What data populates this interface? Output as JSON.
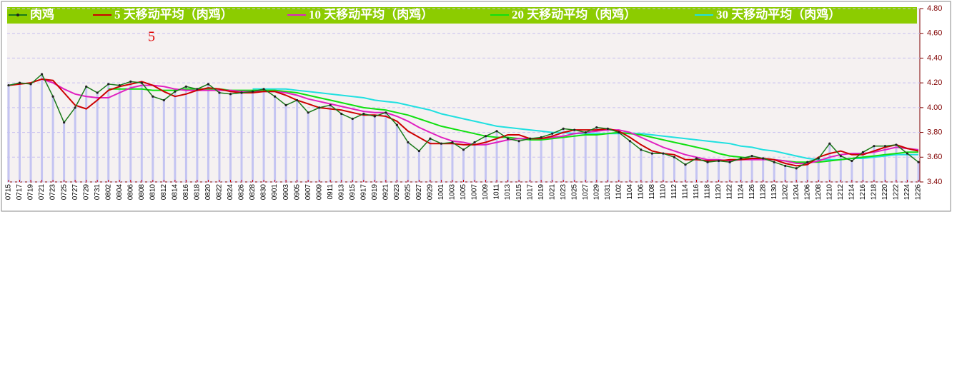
{
  "chart_data": {
    "type": "line",
    "annotation": "5",
    "categories": [
      "0715",
      "0717",
      "0719",
      "0721",
      "0723",
      "0725",
      "0727",
      "0729",
      "0731",
      "0802",
      "0804",
      "0806",
      "0808",
      "0810",
      "0812",
      "0814",
      "0816",
      "0818",
      "0820",
      "0822",
      "0824",
      "0826",
      "0828",
      "0830",
      "0901",
      "0903",
      "0905",
      "0907",
      "0909",
      "0911",
      "0913",
      "0915",
      "0917",
      "0919",
      "0921",
      "0923",
      "0925",
      "0927",
      "0929",
      "1001",
      "1003",
      "1005",
      "1007",
      "1009",
      "1011",
      "1013",
      "1015",
      "1017",
      "1019",
      "1021",
      "1023",
      "1025",
      "1027",
      "1029",
      "1031",
      "1102",
      "1104",
      "1106",
      "1108",
      "1110",
      "1112",
      "1114",
      "1116",
      "1118",
      "1120",
      "1122",
      "1124",
      "1126",
      "1128",
      "1130",
      "1202",
      "1204",
      "1206",
      "1208",
      "1210",
      "1212",
      "1214",
      "1216",
      "1218",
      "1220",
      "1222",
      "1224",
      "1226"
    ],
    "series": [
      {
        "name": "肉鸡",
        "color": "#1a7a1a",
        "values": [
          4.18,
          4.2,
          4.19,
          4.27,
          4.09,
          3.88,
          4.0,
          4.17,
          4.12,
          4.19,
          4.18,
          4.21,
          4.2,
          4.09,
          4.06,
          4.13,
          4.17,
          4.15,
          4.19,
          4.12,
          4.11,
          4.12,
          4.13,
          4.15,
          4.09,
          4.02,
          4.06,
          3.96,
          4.0,
          4.02,
          3.95,
          3.91,
          3.95,
          3.93,
          3.96,
          3.86,
          3.72,
          3.65,
          3.75,
          3.71,
          3.72,
          3.66,
          3.72,
          3.77,
          3.81,
          3.75,
          3.73,
          3.75,
          3.76,
          3.79,
          3.83,
          3.82,
          3.8,
          3.84,
          3.83,
          3.8,
          3.73,
          3.66,
          3.63,
          3.63,
          3.6,
          3.54,
          3.59,
          3.56,
          3.57,
          3.56,
          3.59,
          3.61,
          3.59,
          3.56,
          3.53,
          3.51,
          3.56,
          3.59,
          3.71,
          3.61,
          3.57,
          3.64,
          3.69,
          3.69,
          3.7,
          3.63,
          3.56
        ]
      },
      {
        "name": "5 天移动平均（肉鸡）",
        "color": "#cc0000",
        "values": [
          4.18,
          4.19,
          4.2,
          4.23,
          4.22,
          4.12,
          4.02,
          3.99,
          4.06,
          4.14,
          4.17,
          4.19,
          4.21,
          4.18,
          4.13,
          4.09,
          4.11,
          4.14,
          4.16,
          4.15,
          4.13,
          4.12,
          4.12,
          4.13,
          4.13,
          4.1,
          4.06,
          4.03,
          4.0,
          3.99,
          3.98,
          3.96,
          3.94,
          3.94,
          3.93,
          3.89,
          3.81,
          3.76,
          3.71,
          3.71,
          3.71,
          3.7,
          3.7,
          3.72,
          3.75,
          3.78,
          3.78,
          3.75,
          3.75,
          3.77,
          3.8,
          3.82,
          3.82,
          3.82,
          3.83,
          3.81,
          3.76,
          3.7,
          3.65,
          3.63,
          3.62,
          3.58,
          3.58,
          3.57,
          3.57,
          3.58,
          3.58,
          3.59,
          3.59,
          3.58,
          3.55,
          3.53,
          3.54,
          3.6,
          3.63,
          3.65,
          3.62,
          3.62,
          3.65,
          3.68,
          3.7,
          3.67,
          3.65
        ]
      },
      {
        "name": "10 天移动平均（肉鸡）",
        "color": "#e020c0",
        "values": [
          null,
          null,
          null,
          4.23,
          4.2,
          4.15,
          4.11,
          4.09,
          4.08,
          4.08,
          4.12,
          4.16,
          4.18,
          4.18,
          4.17,
          4.15,
          4.14,
          4.14,
          4.14,
          4.14,
          4.14,
          4.13,
          4.13,
          4.13,
          4.13,
          4.12,
          4.1,
          4.07,
          4.05,
          4.03,
          4.01,
          3.99,
          3.97,
          3.96,
          3.96,
          3.93,
          3.89,
          3.84,
          3.8,
          3.76,
          3.73,
          3.72,
          3.7,
          3.7,
          3.72,
          3.74,
          3.75,
          3.75,
          3.75,
          3.76,
          3.77,
          3.79,
          3.8,
          3.81,
          3.82,
          3.82,
          3.8,
          3.76,
          3.72,
          3.68,
          3.65,
          3.62,
          3.6,
          3.58,
          3.58,
          3.57,
          3.58,
          3.58,
          3.58,
          3.58,
          3.57,
          3.55,
          3.55,
          3.57,
          3.6,
          3.62,
          3.63,
          3.63,
          3.64,
          3.66,
          3.68,
          3.67,
          3.66
        ]
      },
      {
        "name": "20 天移动平均（肉鸡）",
        "color": "#10e010",
        "values": [
          null,
          null,
          null,
          null,
          null,
          null,
          null,
          null,
          null,
          4.15,
          4.15,
          4.15,
          4.15,
          4.14,
          4.14,
          4.14,
          4.15,
          4.15,
          4.15,
          4.15,
          4.14,
          4.14,
          4.14,
          4.14,
          4.14,
          4.13,
          4.12,
          4.1,
          4.08,
          4.06,
          4.04,
          4.02,
          4.0,
          3.99,
          3.98,
          3.96,
          3.94,
          3.91,
          3.88,
          3.85,
          3.83,
          3.81,
          3.79,
          3.77,
          3.76,
          3.76,
          3.75,
          3.74,
          3.74,
          3.75,
          3.76,
          3.77,
          3.78,
          3.78,
          3.79,
          3.8,
          3.79,
          3.78,
          3.76,
          3.74,
          3.72,
          3.7,
          3.68,
          3.66,
          3.63,
          3.61,
          3.6,
          3.59,
          3.59,
          3.58,
          3.57,
          3.56,
          3.56,
          3.56,
          3.57,
          3.58,
          3.59,
          3.6,
          3.61,
          3.62,
          3.63,
          3.64,
          3.64
        ]
      },
      {
        "name": "30 天移动平均（肉鸡）",
        "color": "#20e0e0",
        "values": [
          null,
          null,
          null,
          null,
          null,
          null,
          null,
          null,
          null,
          null,
          null,
          null,
          null,
          null,
          null,
          null,
          null,
          null,
          null,
          null,
          null,
          null,
          4.15,
          4.15,
          4.15,
          4.15,
          4.14,
          4.13,
          4.12,
          4.11,
          4.1,
          4.09,
          4.08,
          4.06,
          4.05,
          4.04,
          4.02,
          4.0,
          3.98,
          3.95,
          3.93,
          3.91,
          3.89,
          3.87,
          3.85,
          3.84,
          3.83,
          3.82,
          3.81,
          3.8,
          3.8,
          3.79,
          3.79,
          3.79,
          3.79,
          3.79,
          3.79,
          3.79,
          3.78,
          3.77,
          3.76,
          3.75,
          3.74,
          3.73,
          3.72,
          3.71,
          3.69,
          3.68,
          3.66,
          3.65,
          3.63,
          3.61,
          3.59,
          3.58,
          3.58,
          3.58,
          3.59,
          3.59,
          3.6,
          3.61,
          3.62,
          3.62,
          3.62
        ]
      }
    ],
    "ylim": [
      3.4,
      4.8
    ],
    "yticks": [
      {
        "value": 3.4,
        "label": "3.40"
      },
      {
        "value": 3.6,
        "label": "3.60"
      },
      {
        "value": 3.8,
        "label": "3.80"
      },
      {
        "value": 4.0,
        "label": "4.00"
      },
      {
        "value": 4.2,
        "label": "4.20"
      },
      {
        "value": 4.4,
        "label": "4.40"
      },
      {
        "value": 4.6,
        "label": "4.60"
      },
      {
        "value": 4.8,
        "label": "4.80"
      }
    ],
    "grid": true,
    "legend": "top",
    "bar_color": "#c4c4f2"
  }
}
